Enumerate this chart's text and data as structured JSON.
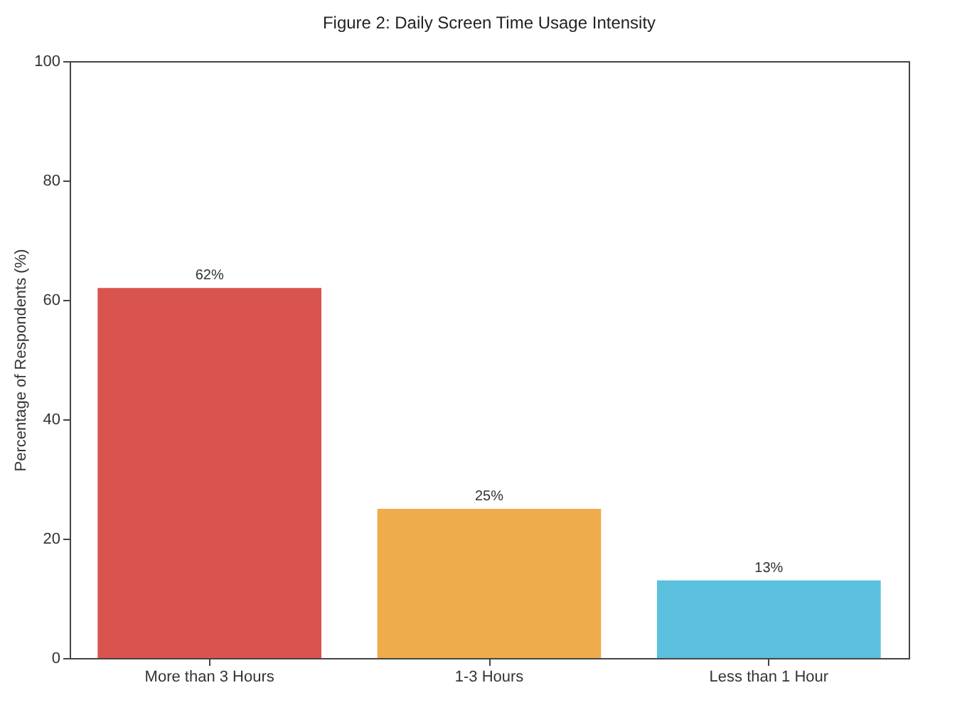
{
  "chart_data": {
    "type": "bar",
    "title": "Figure 2: Daily Screen Time Usage Intensity",
    "ylabel": "Percentage of Respondents (%)",
    "categories": [
      "More than 3 Hours",
      "1-3 Hours",
      "Less than 1 Hour"
    ],
    "values": [
      62,
      25,
      13
    ],
    "colors": [
      "#d9534f",
      "#eeac4c",
      "#5bc0de"
    ],
    "value_labels": [
      "62%",
      "25%",
      "13%"
    ],
    "ylim": [
      0,
      100
    ],
    "yticks": [
      0,
      20,
      40,
      60,
      80,
      100
    ],
    "grid": false
  }
}
